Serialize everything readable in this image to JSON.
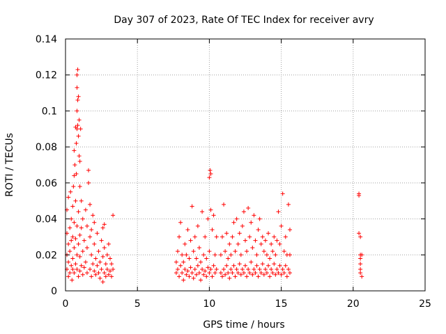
{
  "chart_data": {
    "type": "scatter",
    "title": "Day 307 of 2023, Rate Of TEC Index for receiver avry",
    "xlabel": "GPS time / hours",
    "ylabel": "ROTI / TECUs",
    "xlim": [
      0,
      25
    ],
    "ylim": [
      0,
      0.14
    ],
    "xticks": [
      0,
      5,
      10,
      15,
      20,
      25
    ],
    "xtick_labels": [
      "0",
      "5",
      "10",
      "15",
      "20",
      "25"
    ],
    "yticks": [
      0,
      0.02,
      0.04,
      0.06,
      0.08,
      0.1,
      0.12,
      0.14
    ],
    "ytick_labels": [
      "0",
      "0.02",
      "0.04",
      "0.06",
      "0.08",
      "0.1",
      "0.12",
      "0.14"
    ],
    "grid": true,
    "marker": "+",
    "color": "#ff0000",
    "series": [
      {
        "name": "ROTI",
        "points": [
          [
            0.1,
            0.012
          ],
          [
            0.1,
            0.02
          ],
          [
            0.1,
            0.032
          ],
          [
            0.1,
            0.045
          ],
          [
            0.2,
            0.008
          ],
          [
            0.2,
            0.016
          ],
          [
            0.2,
            0.026
          ],
          [
            0.2,
            0.052
          ],
          [
            0.3,
            0.01
          ],
          [
            0.3,
            0.022
          ],
          [
            0.3,
            0.035
          ],
          [
            0.35,
            0.055
          ],
          [
            0.4,
            0.014
          ],
          [
            0.4,
            0.028
          ],
          [
            0.4,
            0.04
          ],
          [
            0.45,
            0.006
          ],
          [
            0.5,
            0.012
          ],
          [
            0.5,
            0.018
          ],
          [
            0.5,
            0.03
          ],
          [
            0.5,
            0.047
          ],
          [
            0.55,
            0.058
          ],
          [
            0.6,
            0.01
          ],
          [
            0.6,
            0.024
          ],
          [
            0.6,
            0.038
          ],
          [
            0.6,
            0.064
          ],
          [
            0.6,
            0.078
          ],
          [
            0.65,
            0.07
          ],
          [
            0.7,
            0.015
          ],
          [
            0.7,
            0.029
          ],
          [
            0.7,
            0.05
          ],
          [
            0.7,
            0.091
          ],
          [
            0.75,
            0.065
          ],
          [
            0.75,
            0.082
          ],
          [
            0.8,
            0.012
          ],
          [
            0.8,
            0.02
          ],
          [
            0.8,
            0.036
          ],
          [
            0.8,
            0.09
          ],
          [
            0.8,
            0.1
          ],
          [
            0.8,
            0.113
          ],
          [
            0.8,
            0.12
          ],
          [
            0.85,
            0.123
          ],
          [
            0.85,
            0.106
          ],
          [
            0.85,
            0.092
          ],
          [
            0.9,
            0.008
          ],
          [
            0.9,
            0.026
          ],
          [
            0.9,
            0.044
          ],
          [
            0.9,
            0.108
          ],
          [
            0.9,
            0.086
          ],
          [
            0.95,
            0.095
          ],
          [
            0.95,
            0.075
          ],
          [
            1.0,
            0.011
          ],
          [
            1.0,
            0.019
          ],
          [
            1.0,
            0.031
          ],
          [
            1.0,
            0.058
          ],
          [
            1.0,
            0.072
          ],
          [
            1.05,
            0.09
          ],
          [
            1.1,
            0.014
          ],
          [
            1.1,
            0.035
          ],
          [
            1.1,
            0.05
          ],
          [
            1.2,
            0.009
          ],
          [
            1.2,
            0.022
          ],
          [
            1.2,
            0.04
          ],
          [
            1.3,
            0.013
          ],
          [
            1.3,
            0.028
          ],
          [
            1.4,
            0.016
          ],
          [
            1.4,
            0.045
          ],
          [
            1.5,
            0.01
          ],
          [
            1.5,
            0.024
          ],
          [
            1.5,
            0.036
          ],
          [
            1.6,
            0.06
          ],
          [
            1.6,
            0.067
          ],
          [
            1.7,
            0.012
          ],
          [
            1.7,
            0.03
          ],
          [
            1.7,
            0.048
          ],
          [
            1.8,
            0.008
          ],
          [
            1.8,
            0.02
          ],
          [
            1.8,
            0.034
          ],
          [
            1.9,
            0.015
          ],
          [
            1.9,
            0.042
          ],
          [
            2.0,
            0.011
          ],
          [
            2.0,
            0.026
          ],
          [
            2.0,
            0.038
          ],
          [
            2.1,
            0.009
          ],
          [
            2.1,
            0.018
          ],
          [
            2.2,
            0.014
          ],
          [
            2.2,
            0.032
          ],
          [
            2.3,
            0.01
          ],
          [
            2.3,
            0.022
          ],
          [
            2.4,
            0.007
          ],
          [
            2.4,
            0.016
          ],
          [
            2.5,
            0.012
          ],
          [
            2.5,
            0.028
          ],
          [
            2.6,
            0.005
          ],
          [
            2.6,
            0.019
          ],
          [
            2.6,
            0.035
          ],
          [
            2.7,
            0.01
          ],
          [
            2.7,
            0.024
          ],
          [
            2.7,
            0.037
          ],
          [
            2.8,
            0.008
          ],
          [
            2.8,
            0.015
          ],
          [
            2.9,
            0.012
          ],
          [
            2.9,
            0.02
          ],
          [
            3.0,
            0.009
          ],
          [
            3.0,
            0.026
          ],
          [
            3.1,
            0.011
          ],
          [
            3.1,
            0.018
          ],
          [
            3.2,
            0.008
          ],
          [
            3.2,
            0.015
          ],
          [
            3.3,
            0.012
          ],
          [
            3.3,
            0.042
          ],
          [
            7.7,
            0.01
          ],
          [
            7.7,
            0.016
          ],
          [
            7.8,
            0.012
          ],
          [
            7.8,
            0.022
          ],
          [
            7.9,
            0.008
          ],
          [
            7.9,
            0.03
          ],
          [
            8.0,
            0.014
          ],
          [
            8.0,
            0.038
          ],
          [
            8.1,
            0.01
          ],
          [
            8.1,
            0.02
          ],
          [
            8.2,
            0.006
          ],
          [
            8.2,
            0.016
          ],
          [
            8.3,
            0.012
          ],
          [
            8.3,
            0.026
          ],
          [
            8.4,
            0.009
          ],
          [
            8.4,
            0.02
          ],
          [
            8.5,
            0.011
          ],
          [
            8.5,
            0.034
          ],
          [
            8.6,
            0.008
          ],
          [
            8.6,
            0.018
          ],
          [
            8.7,
            0.013
          ],
          [
            8.7,
            0.028
          ],
          [
            8.8,
            0.01
          ],
          [
            8.8,
            0.047
          ],
          [
            8.9,
            0.007
          ],
          [
            8.9,
            0.022
          ],
          [
            9.0,
            0.012
          ],
          [
            9.0,
            0.03
          ],
          [
            9.1,
            0.009
          ],
          [
            9.1,
            0.018
          ],
          [
            9.2,
            0.014
          ],
          [
            9.2,
            0.036
          ],
          [
            9.3,
            0.01
          ],
          [
            9.3,
            0.024
          ],
          [
            9.4,
            0.006
          ],
          [
            9.4,
            0.016
          ],
          [
            9.5,
            0.012
          ],
          [
            9.5,
            0.044
          ],
          [
            9.6,
            0.009
          ],
          [
            9.6,
            0.02
          ],
          [
            9.7,
            0.011
          ],
          [
            9.7,
            0.03
          ],
          [
            9.8,
            0.008
          ],
          [
            9.8,
            0.018
          ],
          [
            9.9,
            0.013
          ],
          [
            9.9,
            0.04
          ],
          [
            10.0,
            0.01
          ],
          [
            10.0,
            0.022
          ],
          [
            10.0,
            0.063
          ],
          [
            10.05,
            0.067
          ],
          [
            10.1,
            0.065
          ],
          [
            10.1,
            0.012
          ],
          [
            10.1,
            0.045
          ],
          [
            10.2,
            0.008
          ],
          [
            10.2,
            0.034
          ],
          [
            10.3,
            0.014
          ],
          [
            10.3,
            0.042
          ],
          [
            10.4,
            0.01
          ],
          [
            10.4,
            0.02
          ],
          [
            10.5,
            0.012
          ],
          [
            10.5,
            0.03
          ],
          [
            10.8,
            0.01
          ],
          [
            10.8,
            0.02
          ],
          [
            10.9,
            0.008
          ],
          [
            10.9,
            0.03
          ],
          [
            11.0,
            0.012
          ],
          [
            11.0,
            0.048
          ],
          [
            11.1,
            0.009
          ],
          [
            11.1,
            0.022
          ],
          [
            11.2,
            0.014
          ],
          [
            11.2,
            0.032
          ],
          [
            11.3,
            0.01
          ],
          [
            11.3,
            0.018
          ],
          [
            11.4,
            0.007
          ],
          [
            11.4,
            0.026
          ],
          [
            11.5,
            0.012
          ],
          [
            11.5,
            0.02
          ],
          [
            11.6,
            0.01
          ],
          [
            11.6,
            0.03
          ],
          [
            11.7,
            0.014
          ],
          [
            11.7,
            0.038
          ],
          [
            11.8,
            0.008
          ],
          [
            11.8,
            0.022
          ],
          [
            11.9,
            0.012
          ],
          [
            11.9,
            0.04
          ],
          [
            12.0,
            0.01
          ],
          [
            12.0,
            0.026
          ],
          [
            12.1,
            0.015
          ],
          [
            12.1,
            0.032
          ],
          [
            12.2,
            0.009
          ],
          [
            12.2,
            0.02
          ],
          [
            12.3,
            0.012
          ],
          [
            12.3,
            0.036
          ],
          [
            12.4,
            0.01
          ],
          [
            12.4,
            0.044
          ],
          [
            12.5,
            0.014
          ],
          [
            12.5,
            0.028
          ],
          [
            12.6,
            0.008
          ],
          [
            12.6,
            0.022
          ],
          [
            12.7,
            0.012
          ],
          [
            12.7,
            0.046
          ],
          [
            12.8,
            0.01
          ],
          [
            12.8,
            0.03
          ],
          [
            12.9,
            0.016
          ],
          [
            12.9,
            0.038
          ],
          [
            13.0,
            0.009
          ],
          [
            13.0,
            0.024
          ],
          [
            13.1,
            0.012
          ],
          [
            13.1,
            0.042
          ],
          [
            13.2,
            0.01
          ],
          [
            13.2,
            0.028
          ],
          [
            13.3,
            0.014
          ],
          [
            13.3,
            0.02
          ],
          [
            13.4,
            0.008
          ],
          [
            13.4,
            0.034
          ],
          [
            13.5,
            0.012
          ],
          [
            13.5,
            0.04
          ],
          [
            13.6,
            0.01
          ],
          [
            13.6,
            0.026
          ],
          [
            13.7,
            0.015
          ],
          [
            13.7,
            0.03
          ],
          [
            13.8,
            0.009
          ],
          [
            13.8,
            0.022
          ],
          [
            13.9,
            0.012
          ],
          [
            13.9,
            0.028
          ],
          [
            14.0,
            0.01
          ],
          [
            14.0,
            0.02
          ],
          [
            14.1,
            0.014
          ],
          [
            14.1,
            0.032
          ],
          [
            14.2,
            0.008
          ],
          [
            14.2,
            0.018
          ],
          [
            14.3,
            0.012
          ],
          [
            14.3,
            0.026
          ],
          [
            14.4,
            0.01
          ],
          [
            14.4,
            0.022
          ],
          [
            14.5,
            0.015
          ],
          [
            14.5,
            0.03
          ],
          [
            14.6,
            0.009
          ],
          [
            14.6,
            0.02
          ],
          [
            14.7,
            0.012
          ],
          [
            14.7,
            0.028
          ],
          [
            14.8,
            0.01
          ],
          [
            14.8,
            0.044
          ],
          [
            14.9,
            0.014
          ],
          [
            14.9,
            0.026
          ],
          [
            15.0,
            0.009
          ],
          [
            15.0,
            0.036
          ],
          [
            15.1,
            0.012
          ],
          [
            15.1,
            0.054
          ],
          [
            15.2,
            0.01
          ],
          [
            15.2,
            0.022
          ],
          [
            15.3,
            0.014
          ],
          [
            15.3,
            0.03
          ],
          [
            15.4,
            0.008
          ],
          [
            15.4,
            0.02
          ],
          [
            15.5,
            0.012
          ],
          [
            15.5,
            0.048
          ],
          [
            15.6,
            0.01
          ],
          [
            15.6,
            0.034
          ],
          [
            15.6,
            0.02
          ],
          [
            20.4,
            0.054
          ],
          [
            20.4,
            0.053
          ],
          [
            20.4,
            0.032
          ],
          [
            20.5,
            0.03
          ],
          [
            20.5,
            0.02
          ],
          [
            20.5,
            0.018
          ],
          [
            20.5,
            0.015
          ],
          [
            20.5,
            0.012
          ],
          [
            20.5,
            0.01
          ],
          [
            20.6,
            0.008
          ],
          [
            20.6,
            0.02
          ]
        ]
      }
    ]
  }
}
